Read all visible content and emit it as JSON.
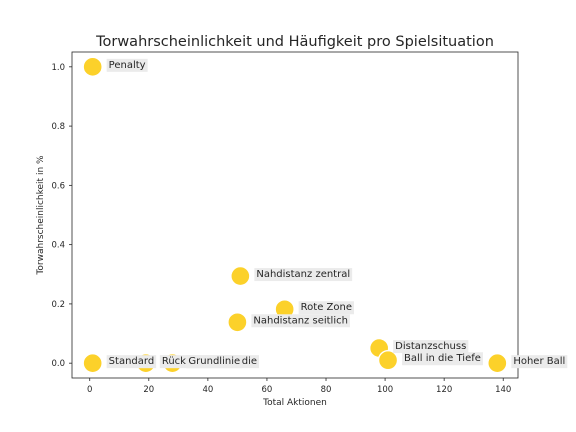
{
  "chart_data": {
    "type": "scatter",
    "title": "Torwahrscheinlichkeit und Häufigkeit pro Spielsituation",
    "xlabel": "Total Aktionen",
    "ylabel": "Torwahrscheinlichkeit in %",
    "xlim": [
      -6,
      145
    ],
    "ylim": [
      -0.05,
      1.05
    ],
    "xticks": [
      0,
      20,
      40,
      60,
      80,
      100,
      120,
      140
    ],
    "yticks": [
      0.0,
      0.2,
      0.4,
      0.6,
      0.8,
      1.0
    ],
    "grid": false,
    "marker_color": "#fcd12a",
    "points": [
      {
        "label": "Penalty",
        "x": 1,
        "y": 1.0
      },
      {
        "label": "Nahdistanz zentral",
        "x": 51,
        "y": 0.294
      },
      {
        "label": "Rote Zone",
        "x": 66,
        "y": 0.182
      },
      {
        "label": "Nahdistanz seitlich",
        "x": 50,
        "y": 0.138
      },
      {
        "label": "Distanzschuss",
        "x": 98,
        "y": 0.051
      },
      {
        "label": "Ball in die Tiefe",
        "x": 101,
        "y": 0.01
      },
      {
        "label": "Hoher Ball",
        "x": 138,
        "y": 0.0
      },
      {
        "label": "Standard",
        "x": 1,
        "y": 0.0
      },
      {
        "label": "Rückpass",
        "x": 19,
        "y": 0.0
      },
      {
        "label": "Ball durch die",
        "x": 28,
        "y": 0.0
      },
      {
        "label": "Grundlinie",
        "x": 28,
        "y": 0.0
      }
    ]
  }
}
